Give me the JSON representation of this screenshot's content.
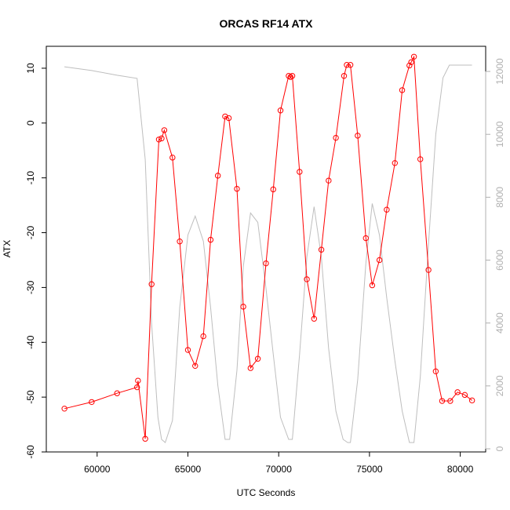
{
  "chart_data": {
    "type": "line",
    "title": "ORCAS RF14 ATX",
    "xlabel": "UTC Seconds",
    "ylabel": "ATX",
    "xlim": [
      57200,
      81400
    ],
    "ylim": [
      -60,
      14
    ],
    "ylim_right": [
      -100,
      12800
    ],
    "x_ticks": [
      60000,
      65000,
      70000,
      75000,
      80000
    ],
    "y_ticks": [
      10,
      0,
      -10,
      -20,
      -30,
      -40,
      -50,
      -60
    ],
    "y_ticks_right": [
      0,
      2000,
      4000,
      6000,
      8000,
      10000,
      12000
    ],
    "grid": false,
    "colors": {
      "primary": "#ff0000",
      "secondary": "#bebebe",
      "axes": "#000000",
      "right_axis": "#b0b0b0"
    },
    "series": [
      {
        "axis": "left",
        "color": "#ff0000",
        "style": "line+circle",
        "points": [
          [
            58200,
            -52.1
          ],
          [
            59700,
            -50.9
          ],
          [
            61100,
            -49.3
          ],
          [
            62200,
            -48.2
          ],
          [
            62250,
            -47.0
          ],
          [
            62650,
            -57.6
          ],
          [
            63000,
            -29.4
          ],
          [
            63400,
            -3.0
          ],
          [
            63550,
            -2.8
          ],
          [
            63700,
            -1.3
          ],
          [
            64150,
            -6.3
          ],
          [
            64550,
            -21.6
          ],
          [
            65000,
            -41.4
          ],
          [
            65400,
            -44.3
          ],
          [
            65850,
            -38.9
          ],
          [
            66250,
            -21.3
          ],
          [
            66650,
            -9.6
          ],
          [
            67050,
            1.2
          ],
          [
            67250,
            0.9
          ],
          [
            67700,
            -12.0
          ],
          [
            68050,
            -33.5
          ],
          [
            68450,
            -44.7
          ],
          [
            68850,
            -43.0
          ],
          [
            69300,
            -25.6
          ],
          [
            69700,
            -12.1
          ],
          [
            70100,
            2.3
          ],
          [
            70550,
            8.6
          ],
          [
            70650,
            8.4
          ],
          [
            70750,
            8.6
          ],
          [
            71150,
            -8.9
          ],
          [
            71550,
            -28.5
          ],
          [
            71950,
            -35.7
          ],
          [
            72350,
            -23.1
          ],
          [
            72750,
            -10.5
          ],
          [
            73150,
            -2.7
          ],
          [
            73600,
            8.6
          ],
          [
            73750,
            10.6
          ],
          [
            73950,
            10.6
          ],
          [
            74350,
            -2.3
          ],
          [
            74800,
            -21.0
          ],
          [
            75150,
            -29.6
          ],
          [
            75550,
            -25.0
          ],
          [
            75950,
            -15.8
          ],
          [
            76400,
            -7.3
          ],
          [
            76800,
            6.0
          ],
          [
            77200,
            10.5
          ],
          [
            77300,
            11.1
          ],
          [
            77450,
            12.1
          ],
          [
            77800,
            -6.6
          ],
          [
            78250,
            -26.8
          ],
          [
            78650,
            -45.3
          ],
          [
            79000,
            -50.7
          ],
          [
            79450,
            -50.7
          ],
          [
            79850,
            -49.1
          ],
          [
            80250,
            -49.6
          ],
          [
            80650,
            -50.6
          ]
        ]
      },
      {
        "axis": "right",
        "color": "#bebebe",
        "style": "line",
        "points": [
          [
            58200,
            12150
          ],
          [
            59700,
            12030
          ],
          [
            61100,
            11880
          ],
          [
            62200,
            11780
          ],
          [
            62650,
            9200
          ],
          [
            63000,
            4000
          ],
          [
            63350,
            1000
          ],
          [
            63550,
            300
          ],
          [
            63750,
            200
          ],
          [
            64150,
            900
          ],
          [
            64550,
            4500
          ],
          [
            65000,
            6800
          ],
          [
            65400,
            7400
          ],
          [
            65850,
            6600
          ],
          [
            66250,
            4500
          ],
          [
            66650,
            2000
          ],
          [
            67050,
            300
          ],
          [
            67300,
            300
          ],
          [
            67700,
            2500
          ],
          [
            68050,
            5800
          ],
          [
            68450,
            7500
          ],
          [
            68850,
            7200
          ],
          [
            69300,
            5100
          ],
          [
            69700,
            3000
          ],
          [
            70100,
            1000
          ],
          [
            70550,
            300
          ],
          [
            70750,
            300
          ],
          [
            71150,
            3000
          ],
          [
            71550,
            6100
          ],
          [
            71950,
            7700
          ],
          [
            72350,
            6100
          ],
          [
            72750,
            3200
          ],
          [
            73150,
            1200
          ],
          [
            73550,
            300
          ],
          [
            73800,
            200
          ],
          [
            73950,
            200
          ],
          [
            74350,
            2200
          ],
          [
            74800,
            5900
          ],
          [
            75150,
            7800
          ],
          [
            75550,
            6800
          ],
          [
            75950,
            4800
          ],
          [
            76400,
            2800
          ],
          [
            76800,
            1200
          ],
          [
            77200,
            200
          ],
          [
            77450,
            200
          ],
          [
            77800,
            2300
          ],
          [
            78250,
            6500
          ],
          [
            78650,
            10000
          ],
          [
            79050,
            11800
          ],
          [
            79400,
            12200
          ],
          [
            80200,
            12200
          ],
          [
            80650,
            12200
          ]
        ]
      }
    ]
  }
}
